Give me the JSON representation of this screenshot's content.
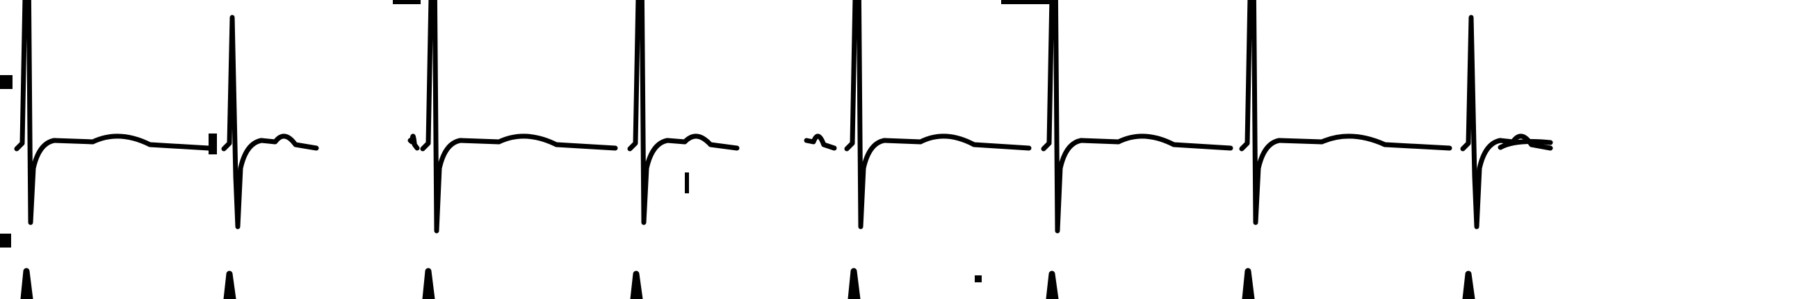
{
  "strip": {
    "background_color": "#ffffff",
    "ink_color": "#000000"
  }
}
